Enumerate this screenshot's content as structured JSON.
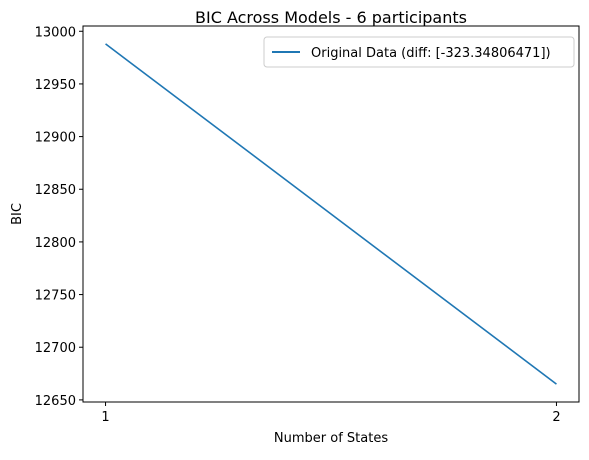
{
  "chart_data": {
    "type": "line",
    "title": "BIC Across Models - 6 participants",
    "xlabel": "Number of States",
    "ylabel": "BIC",
    "x": [
      1,
      2
    ],
    "xticks": [
      "1",
      "2"
    ],
    "xlim": [
      0.95,
      2.05
    ],
    "yticks": [
      "12650",
      "12700",
      "12750",
      "12800",
      "12850",
      "12900",
      "12950",
      "13000"
    ],
    "ylim": [
      12648,
      13005
    ],
    "grid": false,
    "legend_position": "top-right",
    "series": [
      {
        "name": "Original Data (diff: [-323.34806471])",
        "values": [
          12988,
          12665
        ],
        "color": "#1f77b4"
      }
    ]
  }
}
